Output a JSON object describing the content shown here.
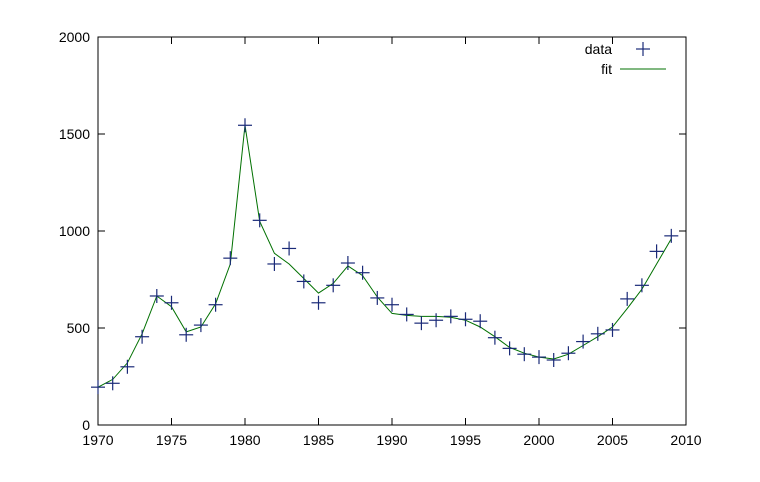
{
  "chart_data": {
    "type": "line",
    "title": "",
    "xlabel": "",
    "ylabel": "",
    "xlim": [
      1970,
      2010
    ],
    "ylim": [
      0,
      2000
    ],
    "xticks": [
      1970,
      1975,
      1980,
      1985,
      1990,
      1995,
      2000,
      2005,
      2010
    ],
    "yticks": [
      0,
      500,
      1000,
      1500,
      2000
    ],
    "grid": false,
    "legend_position": "top-right",
    "series": [
      {
        "name": "data",
        "style": "points",
        "marker": "plus",
        "color": "#1a2a78",
        "x": [
          1970,
          1971,
          1972,
          1973,
          1974,
          1975,
          1976,
          1977,
          1978,
          1979,
          1980,
          1981,
          1982,
          1983,
          1984,
          1985,
          1986,
          1987,
          1988,
          1989,
          1990,
          1991,
          1992,
          1993,
          1994,
          1995,
          1996,
          1997,
          1998,
          1999,
          2000,
          2001,
          2002,
          2003,
          2004,
          2005,
          2006,
          2007,
          2008,
          2009
        ],
        "y": [
          195,
          215,
          300,
          455,
          665,
          630,
          465,
          515,
          620,
          860,
          1545,
          1055,
          830,
          910,
          740,
          630,
          720,
          835,
          785,
          655,
          620,
          570,
          525,
          540,
          560,
          545,
          535,
          450,
          395,
          365,
          350,
          335,
          370,
          430,
          470,
          490,
          650,
          720,
          895,
          975
        ]
      },
      {
        "name": "fit",
        "style": "line",
        "color": "#007000",
        "x": [
          1970,
          1971,
          1972,
          1973,
          1974,
          1975,
          1976,
          1977,
          1978,
          1979,
          1980,
          1981,
          1982,
          1983,
          1984,
          1985,
          1986,
          1987,
          1988,
          1989,
          1990,
          1991,
          1992,
          1993,
          1994,
          1995,
          1996,
          1997,
          1998,
          1999,
          2000,
          2001,
          2002,
          2003,
          2004,
          2005,
          2006,
          2007,
          2008,
          2009
        ],
        "y": [
          195,
          235,
          320,
          470,
          665,
          610,
          480,
          505,
          625,
          830,
          1545,
          1050,
          885,
          830,
          755,
          680,
          730,
          820,
          770,
          660,
          575,
          565,
          560,
          560,
          555,
          540,
          505,
          455,
          400,
          370,
          350,
          340,
          365,
          410,
          455,
          505,
          600,
          700,
          830,
          960
        ]
      }
    ]
  }
}
